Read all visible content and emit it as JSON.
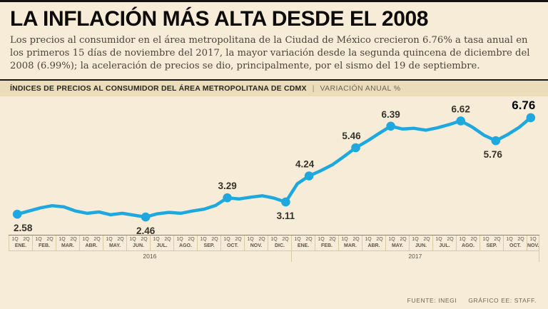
{
  "page": {
    "title": "LA INFLACIÓN MÁS ALTA DESDE EL 2008",
    "intro": "Los precios al consumidor en el área metropolitana de la Ciudad de México crecieron 6.76% a tasa anual en los primeros 15 días de noviembre del 2017, la mayor variación desde la segunda quincena de diciembre del 2008 (6.99%); la aceleración de precios se dio, principalmente, por el sismo del 19 de septiembre."
  },
  "chart_header": {
    "title": "ÍNDICES DE PRECIOS AL CONSUMIDOR DEL ÁREA METROPOLITANA DE CDMX",
    "separator": "|",
    "subtitle": "VARIACIÓN ANUAL %"
  },
  "footer": {
    "source": "FUENTE: INEGI",
    "credit": "GRÁFICO EE: STAFF."
  },
  "colors": {
    "background": "#f7ecd8",
    "strip_background": "#ebdcba",
    "line": "#1da9e0",
    "label_text": "#36322a",
    "emphasis_text": "#000000"
  },
  "chart_data": {
    "type": "line",
    "title": "ÍNDICES DE PRECIOS AL CONSUMIDOR DEL ÁREA METROPOLITANA DE CDMX",
    "subtitle": "VARIACIÓN ANUAL %",
    "unit": "%",
    "line_color": "#1da9e0",
    "ylim": [
      2.0,
      7.25
    ],
    "grid": false,
    "legend": "none",
    "x_unit": "quincenas (1Q/2Q) por mes",
    "years": [
      {
        "year": "2016",
        "months": [
          {
            "name": "ENE.",
            "q": [
              "1Q",
              "2Q"
            ]
          },
          {
            "name": "FEB.",
            "q": [
              "1Q",
              "2Q"
            ]
          },
          {
            "name": "MAR.",
            "q": [
              "1Q",
              "2Q"
            ]
          },
          {
            "name": "ABR.",
            "q": [
              "1Q",
              "2Q"
            ]
          },
          {
            "name": "MAY.",
            "q": [
              "1Q",
              "2Q"
            ]
          },
          {
            "name": "JUN.",
            "q": [
              "1Q",
              "2Q"
            ]
          },
          {
            "name": "JUL.",
            "q": [
              "1Q",
              "2Q"
            ]
          },
          {
            "name": "AGO.",
            "q": [
              "1Q",
              "2Q"
            ]
          },
          {
            "name": "SEP.",
            "q": [
              "1Q",
              "2Q"
            ]
          },
          {
            "name": "OCT.",
            "q": [
              "1Q",
              "2Q"
            ]
          },
          {
            "name": "NOV.",
            "q": [
              "1Q",
              "2Q"
            ]
          },
          {
            "name": "DIC.",
            "q": [
              "1Q",
              "2Q"
            ]
          }
        ]
      },
      {
        "year": "2017",
        "months": [
          {
            "name": "ENE.",
            "q": [
              "1Q",
              "2Q"
            ]
          },
          {
            "name": "FEB.",
            "q": [
              "1Q",
              "2Q"
            ]
          },
          {
            "name": "MAR.",
            "q": [
              "1Q",
              "2Q"
            ]
          },
          {
            "name": "ABR.",
            "q": [
              "1Q",
              "2Q"
            ]
          },
          {
            "name": "MAY.",
            "q": [
              "1Q",
              "2Q"
            ]
          },
          {
            "name": "JUN.",
            "q": [
              "1Q",
              "2Q"
            ]
          },
          {
            "name": "JUL.",
            "q": [
              "1Q",
              "2Q"
            ]
          },
          {
            "name": "AGO.",
            "q": [
              "1Q",
              "2Q"
            ]
          },
          {
            "name": "SEP.",
            "q": [
              "1Q",
              "2Q"
            ]
          },
          {
            "name": "OCT.",
            "q": [
              "1Q",
              "2Q"
            ]
          },
          {
            "name": "NOV.",
            "q": [
              "1Q"
            ]
          }
        ]
      }
    ],
    "values": [
      2.58,
      2.72,
      2.86,
      2.95,
      2.9,
      2.72,
      2.62,
      2.68,
      2.56,
      2.62,
      2.54,
      2.46,
      2.6,
      2.66,
      2.62,
      2.72,
      2.8,
      2.96,
      3.29,
      3.24,
      3.32,
      3.38,
      3.28,
      3.11,
      3.9,
      4.24,
      4.46,
      4.72,
      5.08,
      5.46,
      5.75,
      6.08,
      6.39,
      6.27,
      6.3,
      6.22,
      6.32,
      6.46,
      6.62,
      6.35,
      6.0,
      5.76,
      6.02,
      6.34,
      6.76
    ],
    "labeled_points": [
      {
        "index": 0,
        "label": "2.58",
        "period": "1Q ENE 2016",
        "placement": "below",
        "dx": 8
      },
      {
        "index": 11,
        "label": "2.46",
        "period": "2Q JUN 2016",
        "placement": "below",
        "dx": 0
      },
      {
        "index": 18,
        "label": "3.29",
        "period": "1Q OCT 2016",
        "placement": "above",
        "dx": 0
      },
      {
        "index": 23,
        "label": "3.11",
        "period": "2Q DIC 2016",
        "placement": "below",
        "dx": 0
      },
      {
        "index": 25,
        "label": "4.24",
        "period": "2Q ENE 2017",
        "placement": "above",
        "dx": -6
      },
      {
        "index": 29,
        "label": "5.46",
        "period": "2Q MAR 2017",
        "placement": "above",
        "dx": -6
      },
      {
        "index": 32,
        "label": "6.39",
        "period": "1Q MAY 2017",
        "placement": "above",
        "dx": 0
      },
      {
        "index": 38,
        "label": "6.62",
        "period": "1Q AGO 2017",
        "placement": "above",
        "dx": 0
      },
      {
        "index": 41,
        "label": "5.76",
        "period": "2Q SEP 2017",
        "placement": "below",
        "dx": -4
      },
      {
        "index": 44,
        "label": "6.76",
        "period": "1Q NOV 2017",
        "placement": "above",
        "dx": -10,
        "emphasis": true
      }
    ]
  }
}
